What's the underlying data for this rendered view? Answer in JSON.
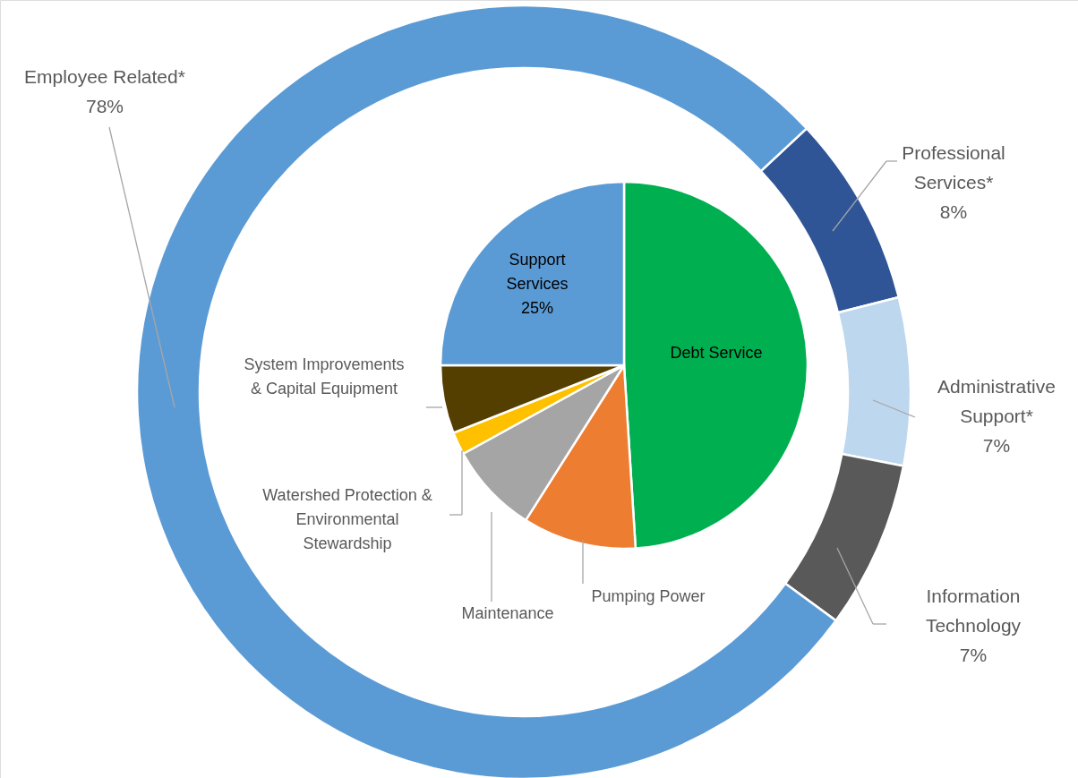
{
  "chart_data": [
    {
      "type": "pie",
      "categories": [
        "Debt Service",
        "Pumping Power",
        "Maintenance",
        "Watershed Protection & Environmental Stewardship",
        "System Improvements & Capital Equipment",
        "Support Services"
      ],
      "values": [
        49,
        10,
        8,
        2,
        6,
        25
      ],
      "colors": [
        "#00b050",
        "#ed7d31",
        "#a5a5a5",
        "#ffc000",
        "#543f00",
        "#5b9bd5"
      ],
      "value_labels": [
        null,
        null,
        null,
        null,
        null,
        "25%"
      ]
    },
    {
      "type": "donut",
      "categories": [
        "Professional Services*",
        "Administrative Support*",
        "Information Technology",
        "Employee Related*"
      ],
      "values": [
        8,
        7,
        7,
        78
      ],
      "colors": [
        "#2f5597",
        "#bdd7ee",
        "#595959",
        "#5b9bd5"
      ],
      "value_labels": [
        "8%",
        "7%",
        "7%",
        "78%"
      ]
    }
  ]
}
